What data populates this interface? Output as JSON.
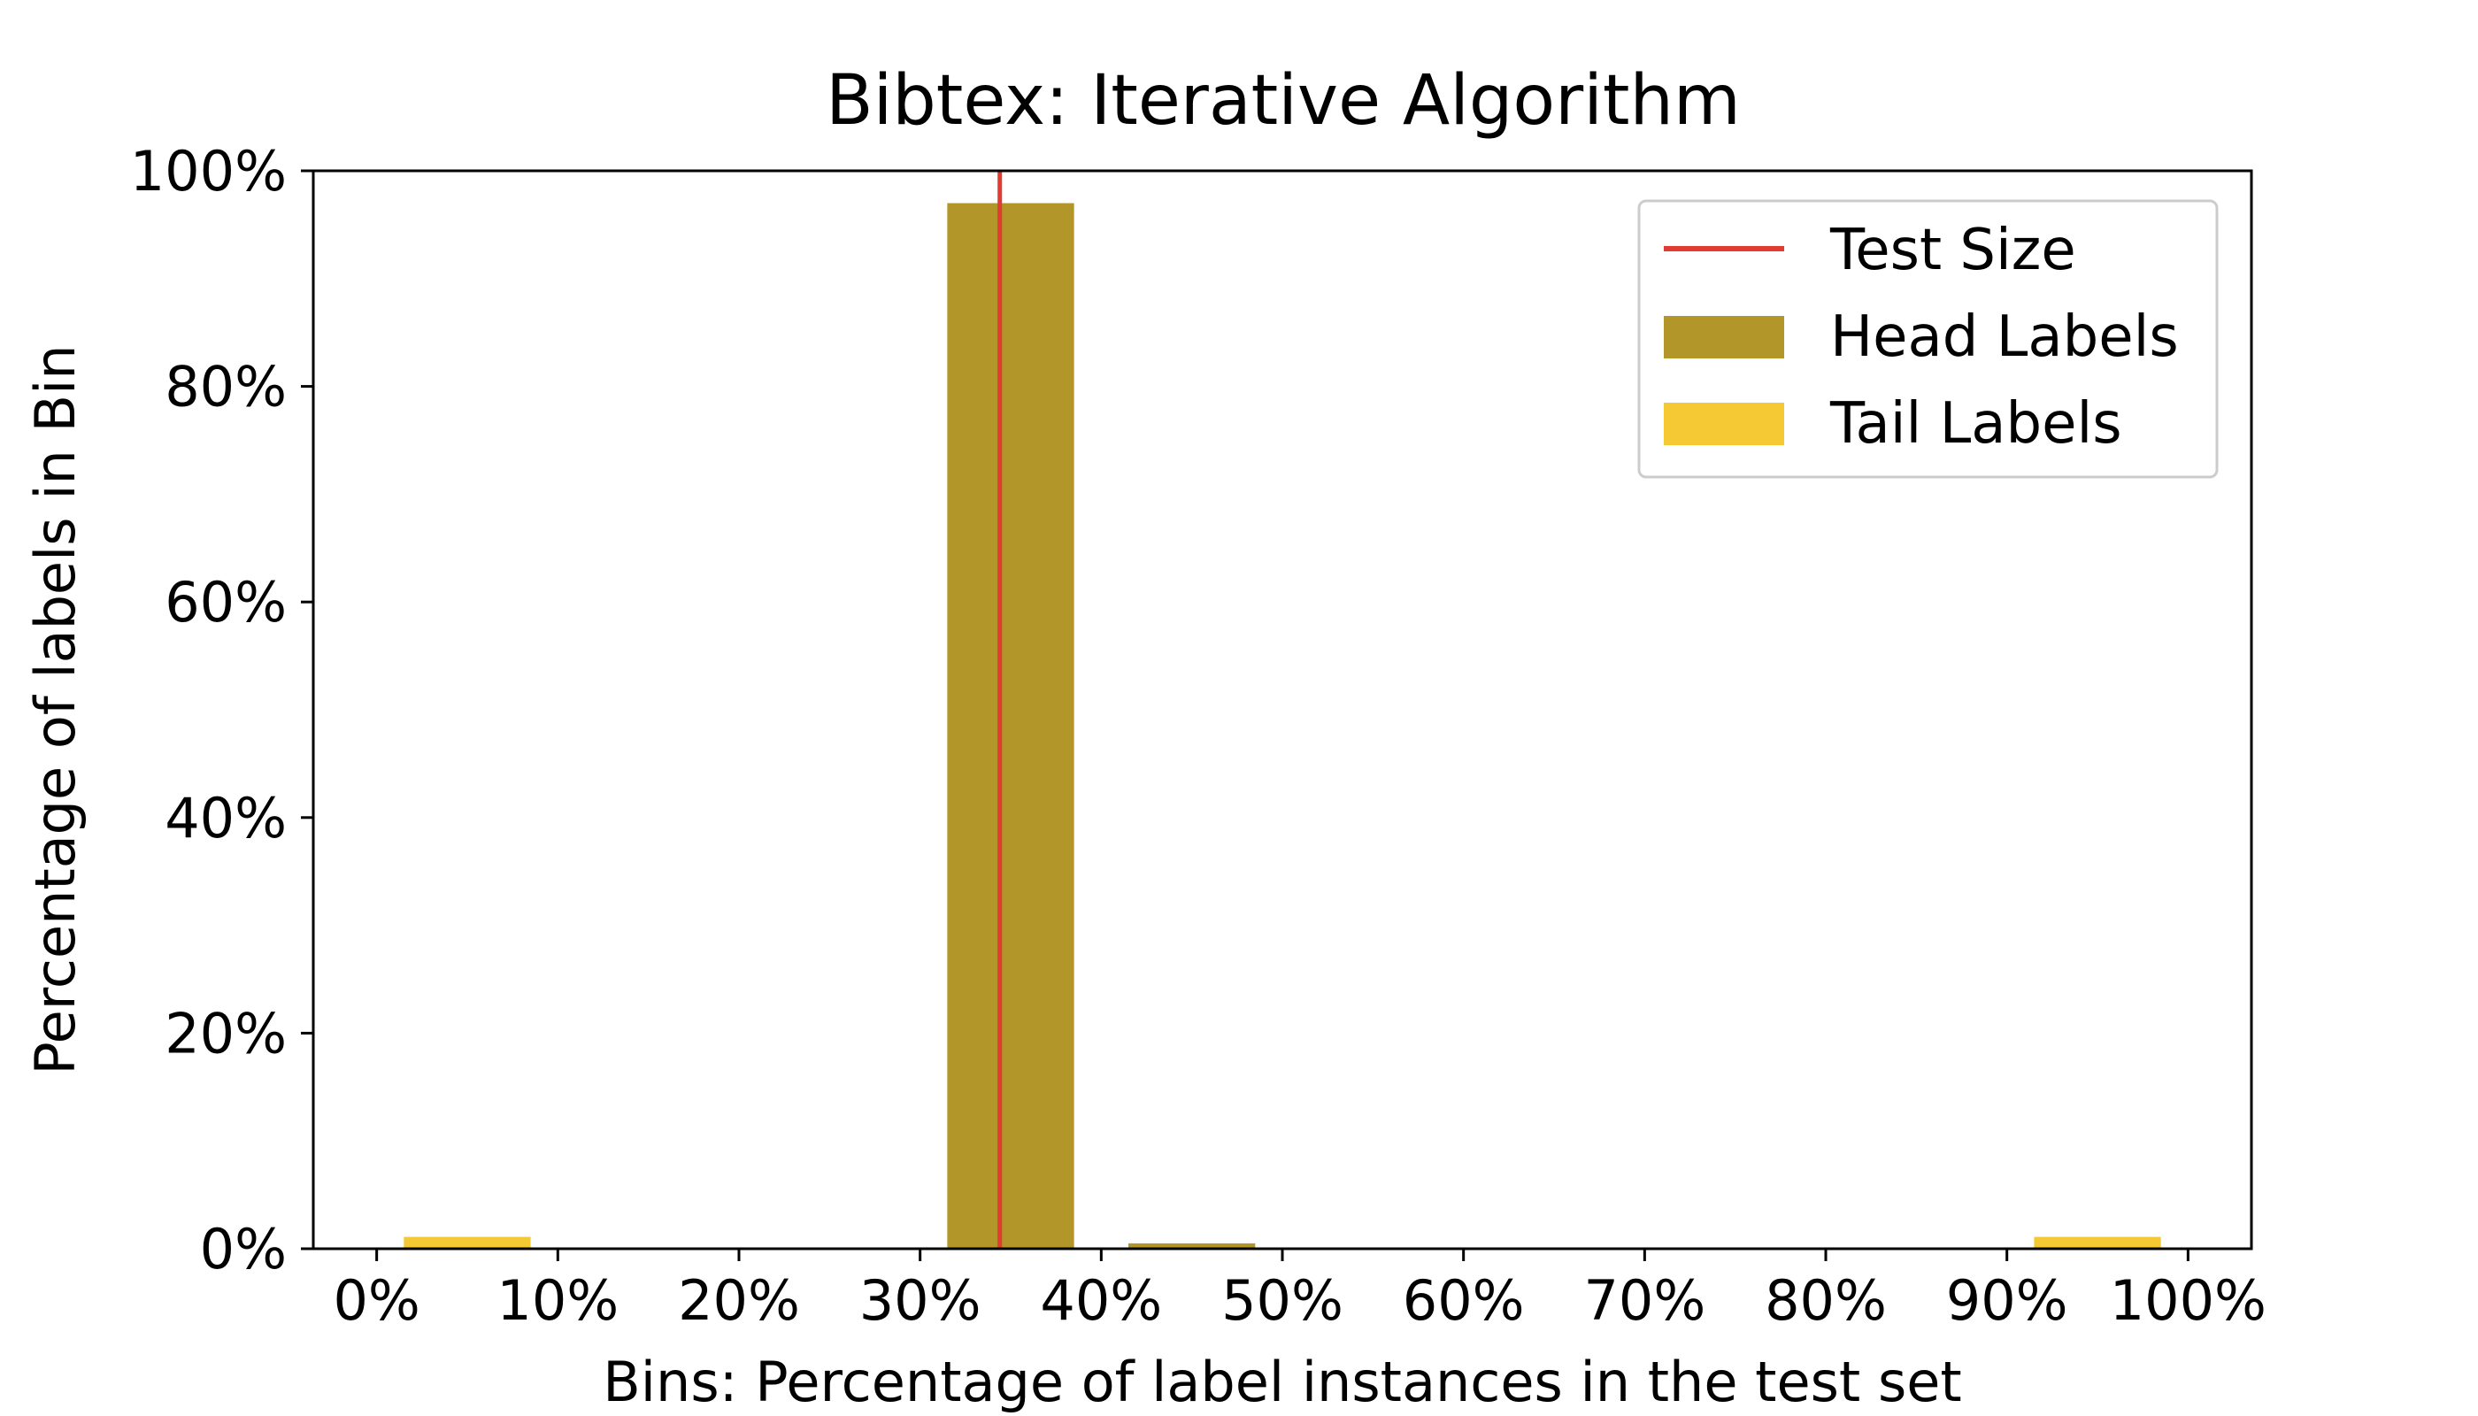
{
  "chart_data": {
    "type": "bar",
    "title": "Bibtex: Iterative Algorithm",
    "xlabel": "Bins: Percentage of label instances in the test set",
    "ylabel": "Percentage of labels in Bin",
    "x_ticks": [
      "0%",
      "10%",
      "20%",
      "30%",
      "40%",
      "50%",
      "60%",
      "70%",
      "80%",
      "90%",
      "100%"
    ],
    "y_ticks": [
      "0%",
      "20%",
      "40%",
      "60%",
      "80%",
      "100%"
    ],
    "xlim": [
      -3.5,
      103.5
    ],
    "ylim": [
      0,
      100
    ],
    "bin_width": 7,
    "series": [
      {
        "name": "Head Labels",
        "color": "#b3962a",
        "bars": [
          {
            "x": 35,
            "value": 97
          },
          {
            "x": 45,
            "value": 0.5
          }
        ]
      },
      {
        "name": "Tail Labels",
        "color": "#f5c933",
        "bars": [
          {
            "x": 5,
            "value": 1.1
          },
          {
            "x": 95,
            "value": 1.1
          }
        ]
      }
    ],
    "reference_line": {
      "name": "Test Size",
      "x": 34.4,
      "color": "#e03c31"
    },
    "legend": {
      "position": "top-right",
      "entries": [
        {
          "label": "Test Size",
          "kind": "line",
          "color": "#e03c31"
        },
        {
          "label": "Head Labels",
          "kind": "patch",
          "color": "#b3962a"
        },
        {
          "label": "Tail Labels",
          "kind": "patch",
          "color": "#f5c933"
        }
      ]
    },
    "grid": false
  }
}
